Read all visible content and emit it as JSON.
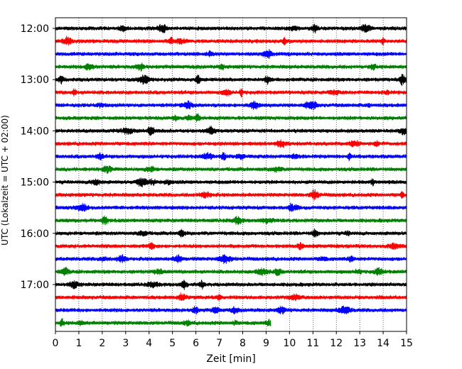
{
  "chart_data": {
    "type": "line",
    "title": "",
    "xlabel": "Zeit  [min]",
    "ylabel": "UTC (Lokalzeit = UTC + 02:00)",
    "xlim": [
      0,
      15
    ],
    "x_ticks": [
      "0",
      "1",
      "2",
      "3",
      "4",
      "5",
      "6",
      "7",
      "8",
      "9",
      "10",
      "11",
      "12",
      "13",
      "14",
      "15"
    ],
    "y_ticks": [
      "12:00",
      "13:00",
      "14:00",
      "15:00",
      "16:00",
      "17:00"
    ],
    "grid": "vertical dotted",
    "trace_minutes": 15,
    "trace_colors": [
      "#000000",
      "#ff0000",
      "#0000ff",
      "#008000"
    ],
    "traces": [
      {
        "start": "12:00",
        "end_min": 15
      },
      {
        "start": "12:15",
        "end_min": 15
      },
      {
        "start": "12:30",
        "end_min": 15
      },
      {
        "start": "12:45",
        "end_min": 15
      },
      {
        "start": "13:00",
        "end_min": 15
      },
      {
        "start": "13:15",
        "end_min": 15
      },
      {
        "start": "13:30",
        "end_min": 15
      },
      {
        "start": "13:45",
        "end_min": 15
      },
      {
        "start": "14:00",
        "end_min": 15
      },
      {
        "start": "14:15",
        "end_min": 15
      },
      {
        "start": "14:30",
        "end_min": 15
      },
      {
        "start": "14:45",
        "end_min": 15
      },
      {
        "start": "15:00",
        "end_min": 15
      },
      {
        "start": "15:15",
        "end_min": 15
      },
      {
        "start": "15:30",
        "end_min": 15
      },
      {
        "start": "15:45",
        "end_min": 15
      },
      {
        "start": "16:00",
        "end_min": 15
      },
      {
        "start": "16:15",
        "end_min": 15
      },
      {
        "start": "16:30",
        "end_min": 15
      },
      {
        "start": "16:45",
        "end_min": 15
      },
      {
        "start": "17:00",
        "end_min": 15
      },
      {
        "start": "17:15",
        "end_min": 15
      },
      {
        "start": "17:30",
        "end_min": 15
      },
      {
        "start": "17:45",
        "end_min": 9.2
      }
    ]
  }
}
